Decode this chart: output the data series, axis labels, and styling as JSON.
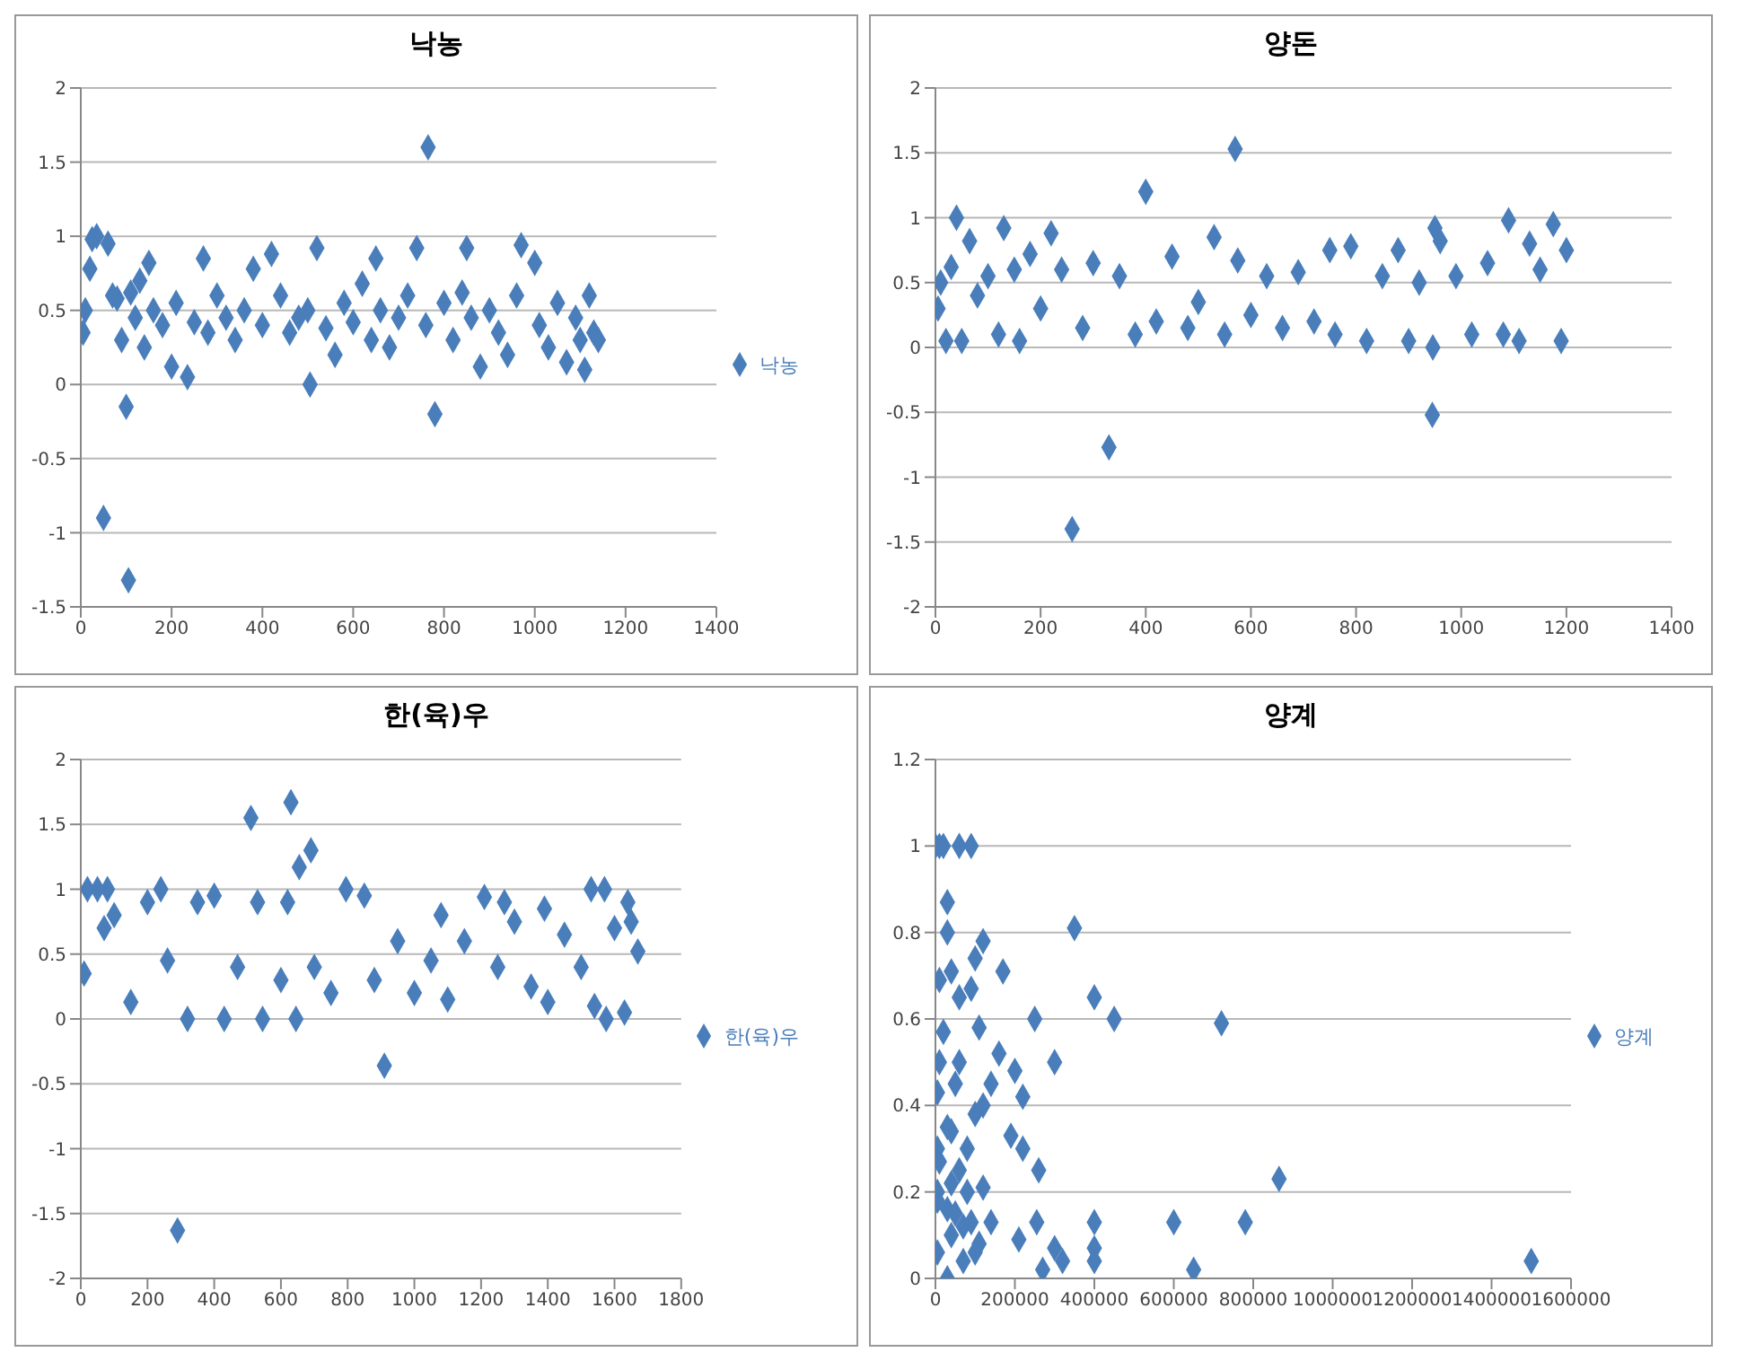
{
  "chart_data": [
    {
      "type": "scatter",
      "title": "낙농",
      "xlim": [
        0,
        1400
      ],
      "xticks": [
        0,
        200,
        400,
        600,
        800,
        1000,
        1200,
        1400
      ],
      "ylim": [
        -1.5,
        2
      ],
      "yticks": [
        -1.5,
        -1,
        -0.5,
        0,
        0.5,
        1,
        1.5,
        2
      ],
      "grid": "y",
      "legend": "right",
      "marker": "diamond",
      "series": [
        {
          "name": "낙농",
          "color": "#4a7ebb",
          "x": [
            5,
            10,
            20,
            25,
            35,
            50,
            60,
            70,
            80,
            90,
            100,
            105,
            110,
            120,
            130,
            140,
            150,
            160,
            180,
            200,
            210,
            235,
            250,
            270,
            280,
            300,
            320,
            340,
            360,
            380,
            400,
            420,
            440,
            460,
            480,
            500,
            505,
            520,
            540,
            560,
            580,
            600,
            620,
            640,
            650,
            660,
            680,
            700,
            720,
            740,
            760,
            765,
            780,
            800,
            820,
            840,
            850,
            860,
            880,
            900,
            920,
            940,
            960,
            970,
            1000,
            1010,
            1030,
            1050,
            1070,
            1090,
            1100,
            1110,
            1120,
            1130,
            1140
          ],
          "values": [
            0.35,
            0.5,
            0.78,
            0.98,
            1.0,
            -0.9,
            0.95,
            0.6,
            0.58,
            0.3,
            -0.15,
            -1.32,
            0.62,
            0.45,
            0.7,
            0.25,
            0.82,
            0.5,
            0.4,
            0.12,
            0.55,
            0.05,
            0.42,
            0.85,
            0.35,
            0.6,
            0.45,
            0.3,
            0.5,
            0.78,
            0.4,
            0.88,
            0.6,
            0.35,
            0.45,
            0.5,
            0,
            0.92,
            0.38,
            0.2,
            0.55,
            0.42,
            0.68,
            0.3,
            0.85,
            0.5,
            0.25,
            0.45,
            0.6,
            0.92,
            0.4,
            1.6,
            -0.2,
            0.55,
            0.3,
            0.62,
            0.92,
            0.45,
            0.12,
            0.5,
            0.35,
            0.2,
            0.6,
            0.94,
            0.82,
            0.4,
            0.25,
            0.55,
            0.15,
            0.45,
            0.3,
            0.1,
            0.6,
            0.35,
            0.3
          ]
        }
      ]
    },
    {
      "type": "scatter",
      "title": "양돈",
      "xlim": [
        0,
        1400
      ],
      "xticks": [
        0,
        200,
        400,
        600,
        800,
        1000,
        1200,
        1400
      ],
      "ylim": [
        -2,
        2
      ],
      "yticks": [
        -2,
        -1.5,
        -1,
        -0.5,
        0,
        0.5,
        1,
        1.5,
        2
      ],
      "grid": "y",
      "marker": "diamond",
      "series": [
        {
          "color": "#4a7ebb",
          "x": [
            5,
            10,
            20,
            30,
            40,
            50,
            65,
            80,
            100,
            120,
            130,
            150,
            160,
            180,
            200,
            220,
            240,
            260,
            280,
            300,
            330,
            350,
            380,
            400,
            420,
            450,
            480,
            500,
            530,
            550,
            570,
            575,
            600,
            630,
            660,
            690,
            720,
            750,
            760,
            790,
            820,
            850,
            880,
            900,
            920,
            945,
            946,
            950,
            960,
            990,
            1020,
            1050,
            1080,
            1090,
            1110,
            1130,
            1150,
            1175,
            1190,
            1200
          ],
          "values": [
            0.3,
            0.5,
            0.05,
            0.62,
            1.0,
            0.05,
            0.82,
            0.4,
            0.55,
            0.1,
            0.92,
            0.6,
            0.05,
            0.72,
            0.3,
            0.88,
            0.6,
            -1.4,
            0.15,
            0.65,
            -0.77,
            0.55,
            0.1,
            1.2,
            0.2,
            0.7,
            0.15,
            0.35,
            0.85,
            0.1,
            1.53,
            0.67,
            0.25,
            0.55,
            0.15,
            0.58,
            0.2,
            0.75,
            0.1,
            0.78,
            0.05,
            0.55,
            0.75,
            0.05,
            0.5,
            -0.52,
            0.0,
            0.92,
            0.82,
            0.55,
            0.1,
            0.65,
            0.1,
            0.98,
            0.05,
            0.8,
            0.6,
            0.95,
            0.05,
            0.75
          ]
        }
      ]
    },
    {
      "type": "scatter",
      "title": "한(육)우",
      "xlim": [
        0,
        1800
      ],
      "xticks": [
        0,
        200,
        400,
        600,
        800,
        1000,
        1200,
        1400,
        1600,
        1800
      ],
      "ylim": [
        -2,
        2
      ],
      "yticks": [
        -2,
        -1.5,
        -1,
        -0.5,
        0,
        0.5,
        1,
        1.5,
        2
      ],
      "grid": "y",
      "legend": "right",
      "marker": "diamond",
      "series": [
        {
          "name": "한(육)우",
          "color": "#4a7ebb",
          "x": [
            10,
            20,
            50,
            80,
            70,
            100,
            150,
            200,
            240,
            260,
            290,
            320,
            350,
            400,
            430,
            470,
            510,
            530,
            545,
            600,
            620,
            630,
            645,
            655,
            690,
            700,
            750,
            795,
            850,
            880,
            910,
            950,
            1000,
            1050,
            1080,
            1100,
            1150,
            1210,
            1250,
            1270,
            1300,
            1350,
            1390,
            1400,
            1450,
            1500,
            1530,
            1540,
            1570,
            1575,
            1600,
            1630,
            1640,
            1650,
            1670
          ],
          "values": [
            0.35,
            1.0,
            1.0,
            1.0,
            0.7,
            0.8,
            0.13,
            0.9,
            1.0,
            0.45,
            -1.63,
            0,
            0.9,
            0.95,
            0,
            0.4,
            1.55,
            0.9,
            0,
            0.3,
            0.9,
            1.67,
            0,
            1.17,
            1.3,
            0.4,
            0.2,
            1.0,
            0.95,
            0.3,
            -0.36,
            0.6,
            0.2,
            0.45,
            0.8,
            0.15,
            0.6,
            0.94,
            0.4,
            0.9,
            0.75,
            0.25,
            0.85,
            0.13,
            0.65,
            0.4,
            1.0,
            0.1,
            1.0,
            0,
            0.7,
            0.05,
            0.9,
            0.75,
            0.52
          ]
        }
      ]
    },
    {
      "type": "scatter",
      "title": "양계",
      "xlim": [
        0,
        1600000
      ],
      "xticks": [
        0,
        200000,
        400000,
        600000,
        800000,
        1000000,
        1200000,
        1400000,
        1600000
      ],
      "ylim": [
        0,
        1.2
      ],
      "yticks": [
        0,
        0.2,
        0.4,
        0.6,
        0.8,
        1,
        1.2
      ],
      "grid": "y",
      "legend": "right",
      "marker": "diamond",
      "series": [
        {
          "name": "양계",
          "color": "#4a7ebb",
          "x": [
            0,
            10000,
            20000,
            60000,
            90000,
            30000,
            30000,
            120000,
            350000,
            100000,
            170000,
            10000,
            40000,
            60000,
            90000,
            400000,
            450000,
            720000,
            20000,
            110000,
            160000,
            300000,
            10000,
            60000,
            220000,
            5000,
            50000,
            120000,
            30000,
            190000,
            5000,
            40000,
            80000,
            140000,
            250000,
            10000,
            60000,
            100000,
            200000,
            5000,
            40000,
            80000,
            220000,
            260000,
            865000,
            5000,
            50000,
            90000,
            120000,
            140000,
            210000,
            40000,
            70000,
            100000,
            255000,
            400000,
            600000,
            780000,
            30000,
            110000,
            300000,
            400000,
            5000,
            70000,
            270000,
            320000,
            400000,
            650000,
            1500000,
            30000
          ],
          "values": [
            1.0,
            1.0,
            1.0,
            1.0,
            1.0,
            0.87,
            0.8,
            0.78,
            0.81,
            0.74,
            0.71,
            0.69,
            0.71,
            0.65,
            0.67,
            0.65,
            0.6,
            0.59,
            0.57,
            0.58,
            0.52,
            0.5,
            0.5,
            0.5,
            0.42,
            0.43,
            0.45,
            0.4,
            0.35,
            0.33,
            0.3,
            0.34,
            0.3,
            0.45,
            0.6,
            0.27,
            0.25,
            0.38,
            0.48,
            0.2,
            0.22,
            0.2,
            0.3,
            0.25,
            0.23,
            0.18,
            0.15,
            0.13,
            0.21,
            0.13,
            0.09,
            0.1,
            0.04,
            0.06,
            0.13,
            0.13,
            0.13,
            0.13,
            0.16,
            0.08,
            0.07,
            0.07,
            0.06,
            0.12,
            0.02,
            0.04,
            0.04,
            0.02,
            0.04,
            0.0
          ]
        }
      ]
    }
  ]
}
